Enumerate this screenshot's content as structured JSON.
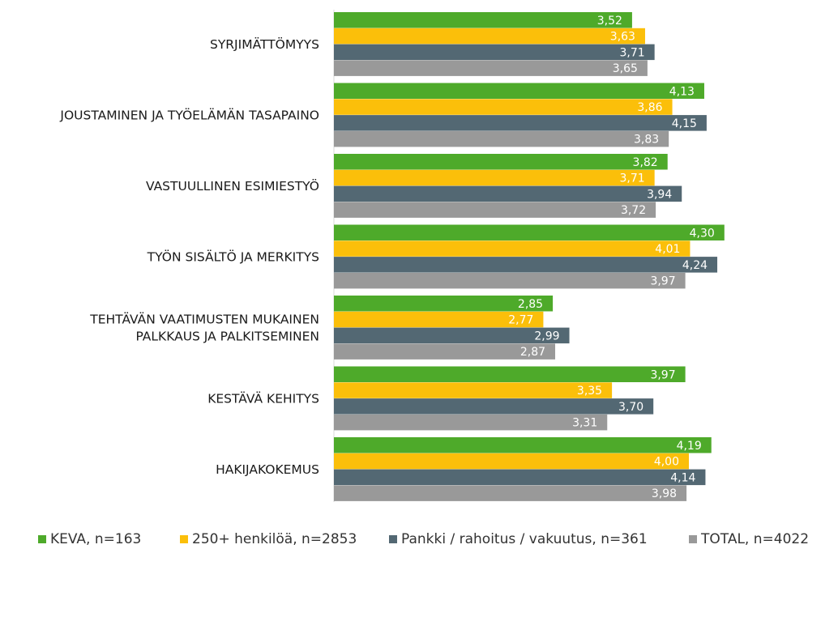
{
  "chart_data": {
    "type": "bar",
    "orientation": "horizontal",
    "categories": [
      "SYRJIMÄTTÖMYYS",
      "JOUSTAMINEN JA TYÖELÄMÄN TASAPAINO",
      "VASTUULLINEN ESIMIESTYÖ",
      "TYÖN SISÄLTÖ JA MERKITYS",
      "TEHTÄVÄN VAATIMUSTEN MUKAINEN PALKKAUS JA PALKITSEMINEN",
      "KESTÄVÄ KEHITYS",
      "HAKIJAKOKEMUS"
    ],
    "category_lines": [
      [
        "SYRJIMÄTTÖMYYS"
      ],
      [
        "JOUSTAMINEN JA TYÖELÄMÄN TASAPAINO"
      ],
      [
        "VASTUULLINEN ESIMIESTYÖ"
      ],
      [
        "TYÖN SISÄLTÖ JA MERKITYS"
      ],
      [
        "TEHTÄVÄN VAATIMUSTEN MUKAINEN",
        "PALKKAUS JA PALKITSEMINEN"
      ],
      [
        "KESTÄVÄ KEHITYS"
      ],
      [
        "HAKIJAKOKEMUS"
      ]
    ],
    "series": [
      {
        "name": "KEVA, n=163",
        "color": "#4eaa2a",
        "values": [
          3.52,
          4.13,
          3.82,
          4.3,
          2.85,
          3.97,
          4.19
        ],
        "labels": [
          "3,52",
          "4,13",
          "3,82",
          "4,30",
          "2,85",
          "3,97",
          "4,19"
        ]
      },
      {
        "name": "250+ henkilöä, n=2853",
        "color": "#fbbf0a",
        "values": [
          3.63,
          3.86,
          3.71,
          4.01,
          2.77,
          3.35,
          4.0
        ],
        "labels": [
          "3,63",
          "3,86",
          "3,71",
          "4,01",
          "2,77",
          "3,35",
          "4,00"
        ]
      },
      {
        "name": "Pankki / rahoitus / vakuutus, n=361",
        "color": "#536873",
        "values": [
          3.71,
          4.15,
          3.94,
          4.24,
          2.99,
          3.7,
          4.14
        ],
        "labels": [
          "3,71",
          "4,15",
          "3,94",
          "4,24",
          "2,99",
          "3,70",
          "4,14"
        ]
      },
      {
        "name": "TOTAL, n=4022",
        "color": "#999999",
        "values": [
          3.65,
          3.83,
          3.72,
          3.97,
          2.87,
          3.31,
          3.98
        ],
        "labels": [
          "3,65",
          "3,83",
          "3,72",
          "3,97",
          "2,87",
          "3,31",
          "3,98"
        ]
      }
    ],
    "xlim": [
      1,
      5
    ],
    "legend_position": "bottom",
    "grid": false
  }
}
